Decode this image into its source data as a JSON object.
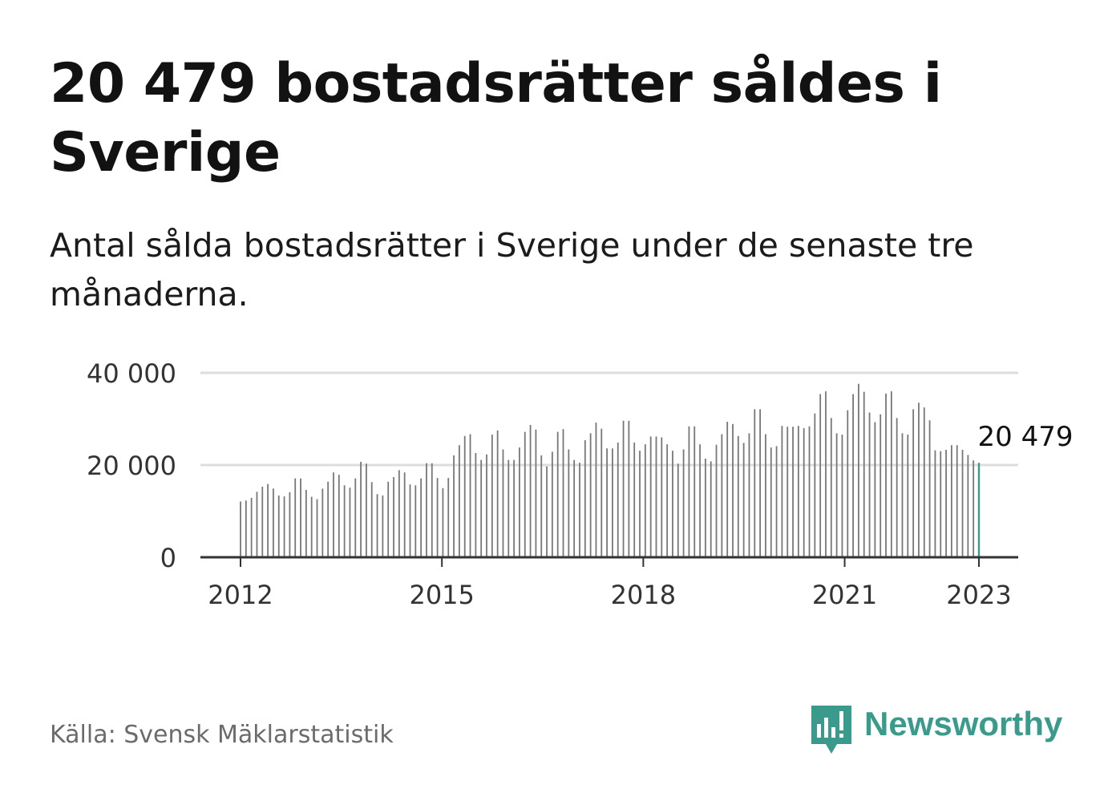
{
  "title": "20 479 bostadsrätter såldes i Sverige",
  "subtitle": "Antal sålda bostadsrätter i Sverige under de senaste tre månaderna.",
  "source": "Källa: Svensk Mäklarstatistik",
  "brand": {
    "name": "Newsworthy",
    "icon": "newsworthy-logo-icon",
    "color": "#3a9a8c"
  },
  "colors": {
    "bars": "#777777",
    "highlight": "#3a9a8c",
    "grid": "#dddddd",
    "axis": "#333333"
  },
  "chart_data": {
    "type": "bar",
    "title": "",
    "xlabel": "",
    "ylabel": "",
    "ylim": [
      0,
      40000
    ],
    "y_ticks": [
      {
        "value": 0,
        "label": "0"
      },
      {
        "value": 20000,
        "label": "20 000"
      },
      {
        "value": 40000,
        "label": "40 000"
      }
    ],
    "x_ticks": [
      {
        "value": "2012-01",
        "label": "2012"
      },
      {
        "value": "2015-01",
        "label": "2015"
      },
      {
        "value": "2018-01",
        "label": "2018"
      },
      {
        "value": "2021-01",
        "label": "2021"
      },
      {
        "value": "2023-01",
        "label": "2023"
      }
    ],
    "grid": true,
    "start": "2012-01",
    "end": "2023-01",
    "values": [
      12100,
      12300,
      12900,
      14200,
      15300,
      15900,
      14900,
      13400,
      13200,
      14100,
      17100,
      17100,
      14600,
      13100,
      12600,
      14900,
      16400,
      18400,
      17900,
      15600,
      15100,
      17100,
      20700,
      20300,
      16300,
      13700,
      13400,
      16400,
      17400,
      18900,
      18400,
      15800,
      15600,
      17100,
      20400,
      20400,
      17200,
      15000,
      17200,
      22100,
      24300,
      26300,
      26700,
      22600,
      21100,
      22300,
      26600,
      27500,
      23400,
      21100,
      21100,
      23800,
      27200,
      28700,
      27700,
      22100,
      19700,
      22900,
      27200,
      27800,
      23400,
      21100,
      20500,
      25400,
      26900,
      29200,
      27900,
      23600,
      23600,
      24900,
      29600,
      29600,
      24900,
      23100,
      24500,
      26200,
      26200,
      26000,
      24500,
      23100,
      20300,
      23400,
      28400,
      28400,
      24500,
      21400,
      20800,
      24400,
      26700,
      29400,
      28900,
      26300,
      24800,
      26900,
      32100,
      32100,
      26700,
      23800,
      24100,
      28500,
      28300,
      28300,
      28500,
      28000,
      28400,
      31200,
      35400,
      36000,
      30200,
      26900,
      26600,
      31900,
      35400,
      37600,
      35900,
      31400,
      29300,
      31000,
      35500,
      36000,
      30200,
      26900,
      26600,
      32100,
      33500,
      32500,
      29700,
      23200,
      23000,
      23300,
      24300,
      24300,
      23300,
      22200,
      21000,
      20479
    ],
    "highlight": {
      "value": 20479,
      "label": "20 479",
      "period": "2023-01"
    }
  }
}
